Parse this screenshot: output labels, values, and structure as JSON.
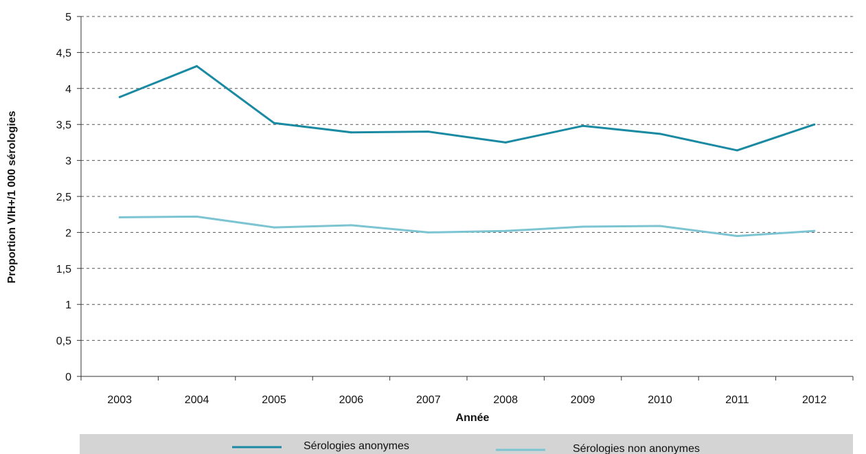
{
  "chart_data": {
    "type": "line",
    "xlabel": "Année",
    "ylabel": "Proportion VIH+/1 000 sérologies",
    "categories": [
      "2003",
      "2004",
      "2005",
      "2006",
      "2007",
      "2008",
      "2009",
      "2010",
      "2011",
      "2012"
    ],
    "ylim": [
      0,
      5
    ],
    "yticks": [
      0,
      0.5,
      1,
      1.5,
      2,
      2.5,
      3,
      3.5,
      4,
      4.5,
      5
    ],
    "ytick_labels": [
      "0",
      "0,5",
      "1",
      "1,5",
      "2",
      "2,5",
      "3",
      "3,5",
      "4",
      "4,5",
      "5"
    ],
    "grid": true,
    "legend_position": "bottom",
    "series": [
      {
        "name": "Sérologies anonymes",
        "color": "#1a8aa3",
        "values": [
          3.88,
          4.31,
          3.52,
          3.39,
          3.4,
          3.25,
          3.48,
          3.37,
          3.14,
          3.5
        ]
      },
      {
        "name": "Sérologies non anonymes",
        "color": "#7cc4d2",
        "values": [
          2.21,
          2.22,
          2.07,
          2.1,
          2.0,
          2.02,
          2.08,
          2.09,
          1.95,
          2.02
        ]
      }
    ]
  }
}
